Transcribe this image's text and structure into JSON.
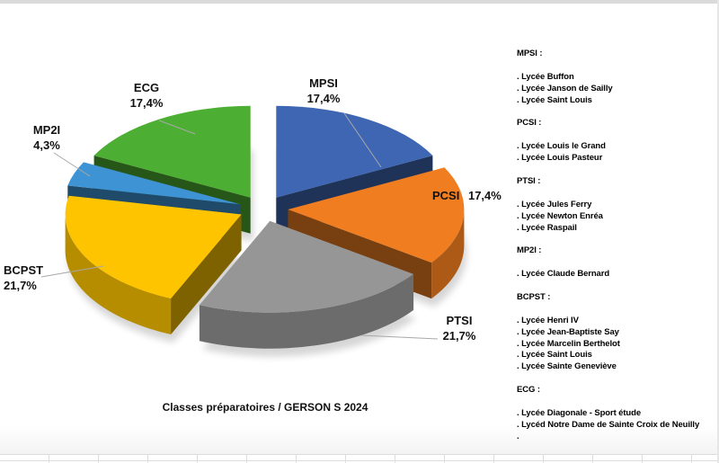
{
  "chart_data": {
    "type": "pie",
    "effect": "3d-exploded",
    "title": "Classes préparatoires / GERSON S 2024",
    "start_angle_deg": -90,
    "direction": "clockwise",
    "legend_position": "none",
    "slices": [
      {
        "label": "MPSI",
        "value": 17.4,
        "pct_label": "17,4%",
        "color": "#3E66B2"
      },
      {
        "label": "PCSI",
        "value": 17.4,
        "pct_label": "17,4%",
        "color": "#F07D1F"
      },
      {
        "label": "PTSI",
        "value": 21.7,
        "pct_label": "21,7%",
        "color": "#969696"
      },
      {
        "label": "BCPST",
        "value": 21.7,
        "pct_label": "21,7%",
        "color": "#FEC400"
      },
      {
        "label": "MP2I",
        "value": 4.3,
        "pct_label": "4,3%",
        "color": "#3E93D4"
      },
      {
        "label": "ECG",
        "value": 17.4,
        "pct_label": "17,4%",
        "color": "#4CAE32"
      }
    ]
  },
  "right_panel": {
    "groups": [
      {
        "header": "MPSI :",
        "items": [
          ". Lycée Buffon",
          ". Lycée Janson de Sailly",
          ". Lycée Saint Louis"
        ]
      },
      {
        "header": "PCSI :",
        "items": [
          ". Lycée Louis le Grand",
          ". Lycée Louis Pasteur"
        ]
      },
      {
        "header": "PTSI :",
        "items": [
          ". Lycée Jules Ferry",
          ". Lycée Newton Enréa",
          ". Lycée Raspail"
        ]
      },
      {
        "header": "MP2I :",
        "items": [
          ". Lycée Claude Bernard"
        ]
      },
      {
        "header": "BCPST :",
        "items": [
          ". Lycée Henri IV",
          ". Lycée Jean-Baptiste Say",
          ". Lycée Marcelin Berthelot",
          ". Lycée Saint Louis",
          ". Lycée Sainte Geneviève"
        ]
      },
      {
        "header": "ECG :",
        "items": [
          ". Lycée Diagonale - Sport étude",
          ". Lycéd Notre Dame de Sainte Croix de Neuilly",
          "."
        ]
      }
    ]
  }
}
